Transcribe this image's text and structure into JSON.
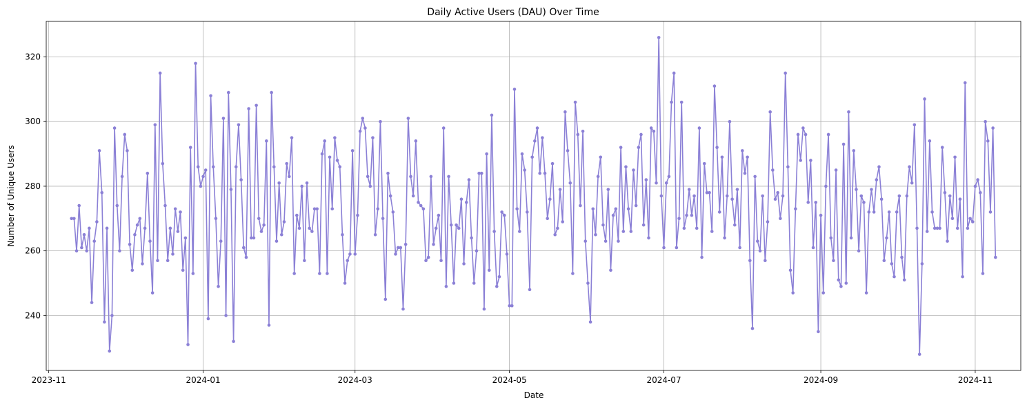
{
  "chart_data": {
    "type": "line",
    "title": "Daily Active Users (DAU) Over Time",
    "xlabel": "Date",
    "ylabel": "Number of Unique Users",
    "x_start": "2023-11-10",
    "x_range": [
      "2023-10-31",
      "2024-11-19"
    ],
    "ylim": [
      223,
      331
    ],
    "x_ticks": [
      {
        "date": "2023-11-01",
        "label": "2023-11"
      },
      {
        "date": "2024-01-01",
        "label": "2024-01"
      },
      {
        "date": "2024-03-01",
        "label": "2024-03"
      },
      {
        "date": "2024-05-01",
        "label": "2024-05"
      },
      {
        "date": "2024-07-01",
        "label": "2024-07"
      },
      {
        "date": "2024-09-01",
        "label": "2024-09"
      },
      {
        "date": "2024-11-01",
        "label": "2024-11"
      }
    ],
    "y_ticks": [
      240,
      260,
      280,
      300,
      320
    ],
    "grid": true,
    "series": [
      {
        "name": "",
        "color": "#8b80d6",
        "marker": "circle",
        "values": [
          270,
          270,
          260,
          274,
          261,
          265,
          260,
          267,
          244,
          263,
          269,
          291,
          278,
          238,
          267,
          229,
          240,
          298,
          274,
          260,
          283,
          296,
          291,
          262,
          254,
          265,
          268,
          270,
          256,
          267,
          284,
          263,
          247,
          299,
          257,
          315,
          287,
          274,
          257,
          267,
          259,
          273,
          266,
          272,
          254,
          264,
          231,
          292,
          253,
          318,
          286,
          280,
          283,
          285,
          239,
          308,
          286,
          270,
          249,
          263,
          301,
          240,
          309,
          279,
          232,
          286,
          299,
          282,
          261,
          258,
          304,
          264,
          264,
          305,
          270,
          266,
          268,
          294,
          237,
          309,
          286,
          263,
          281,
          265,
          269,
          287,
          283,
          295,
          253,
          271,
          267,
          280,
          257,
          281,
          267,
          266,
          273,
          273,
          253,
          290,
          294,
          253,
          289,
          273,
          295,
          288,
          286,
          265,
          250,
          257,
          259,
          291,
          259,
          271,
          297,
          301,
          298,
          283,
          280,
          295,
          265,
          273,
          300,
          270,
          245,
          284,
          277,
          272,
          259,
          261,
          261,
          242,
          262,
          301,
          283,
          277,
          294,
          275,
          274,
          273,
          257,
          258,
          283,
          262,
          267,
          271,
          257,
          298,
          249,
          283,
          268,
          250,
          268,
          267,
          276,
          256,
          275,
          282,
          264,
          250,
          260,
          284,
          284,
          242,
          290,
          254,
          302,
          266,
          249,
          252,
          272,
          271,
          259,
          243,
          243,
          310,
          273,
          266,
          290,
          285,
          272,
          248,
          289,
          294,
          298,
          284,
          295,
          284,
          270,
          276,
          287,
          265,
          267,
          279,
          269,
          303,
          291,
          281,
          253,
          306,
          296,
          274,
          297,
          263,
          250,
          238,
          273,
          265,
          283,
          289,
          268,
          263,
          279,
          254,
          271,
          273,
          263,
          292,
          266,
          286,
          273,
          266,
          285,
          274,
          292,
          296,
          268,
          282,
          264,
          298,
          297,
          281,
          326,
          277,
          261,
          281,
          283,
          306,
          315,
          261,
          270,
          306,
          267,
          271,
          279,
          271,
          277,
          267,
          298,
          258,
          287,
          278,
          278,
          266,
          311,
          292,
          272,
          289,
          264,
          277,
          300,
          276,
          268,
          279,
          261,
          291,
          284,
          289,
          257,
          236,
          283,
          263,
          260,
          277,
          257,
          269,
          303,
          285,
          276,
          278,
          270,
          277,
          315,
          286,
          254,
          247,
          273,
          296,
          288,
          298,
          296,
          275,
          288,
          261,
          275,
          235,
          271,
          247,
          280,
          296,
          264,
          257,
          285,
          251,
          249,
          293,
          250,
          303,
          264,
          291,
          279,
          260,
          277,
          275,
          247,
          272,
          279,
          272,
          282,
          286,
          276,
          257,
          264,
          272,
          256,
          252,
          272,
          277,
          258,
          251,
          277,
          286,
          281,
          299,
          267,
          228,
          256,
          307,
          266,
          294,
          272,
          267,
          267,
          267,
          292,
          278,
          263,
          277,
          270,
          289,
          267,
          276,
          252,
          312,
          267,
          270,
          269,
          280,
          282,
          278,
          253,
          300,
          294,
          272,
          298,
          258
        ]
      }
    ]
  }
}
